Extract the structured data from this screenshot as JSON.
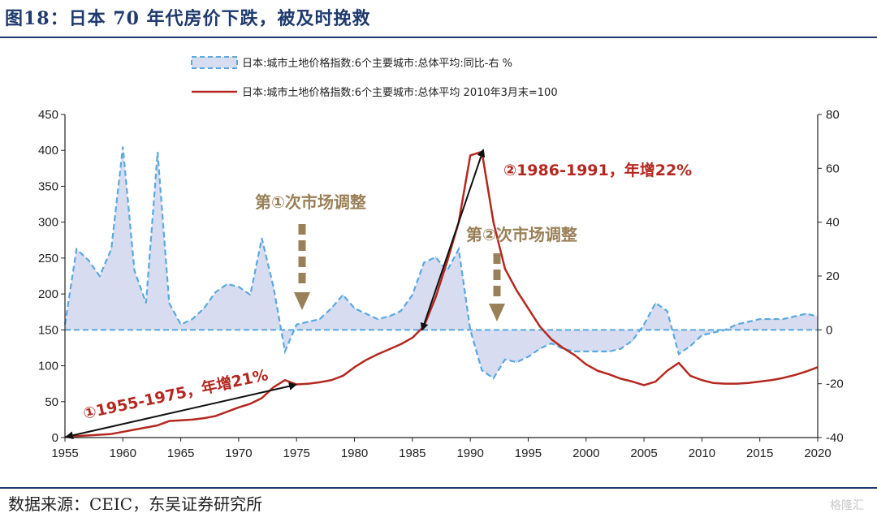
{
  "header": {
    "title": "图18：日本 70 年代房价下跌，被及时挽救"
  },
  "footer": {
    "source": "数据来源：CEIC，东吴证券研究所",
    "watermark": "格隆汇"
  },
  "colors": {
    "area_fill": "#d7dcf1",
    "area_line": "#5aa8e0",
    "index_line": "#b42820",
    "annotation_brown": "#9a8058",
    "annotation_red": "#b42820",
    "arrow": "#111111"
  },
  "chart_data": {
    "type": "line",
    "legend_position": "top",
    "grid": false,
    "x": [
      1955,
      1956,
      1957,
      1958,
      1959,
      1960,
      1961,
      1962,
      1963,
      1964,
      1965,
      1966,
      1967,
      1968,
      1969,
      1970,
      1971,
      1972,
      1973,
      1974,
      1975,
      1976,
      1977,
      1978,
      1979,
      1980,
      1981,
      1982,
      1983,
      1984,
      1985,
      1986,
      1987,
      1988,
      1989,
      1990,
      1991,
      1992,
      1993,
      1994,
      1995,
      1996,
      1997,
      1998,
      1999,
      2000,
      2001,
      2002,
      2003,
      2004,
      2005,
      2006,
      2007,
      2008,
      2009,
      2010,
      2011,
      2012,
      2013,
      2014,
      2015,
      2016,
      2017,
      2018,
      2019,
      2020
    ],
    "xlim": [
      1955,
      2020
    ],
    "x_ticks": [
      "1955",
      "1960",
      "1965",
      "1970",
      "1975",
      "1980",
      "1985",
      "1990",
      "1995",
      "2000",
      "2005",
      "2010",
      "2015",
      "2020"
    ],
    "y_left": {
      "range": [
        0,
        450
      ],
      "ticks": [
        "0",
        "50",
        "100",
        "150",
        "200",
        "250",
        "300",
        "350",
        "400",
        "450"
      ]
    },
    "y_right": {
      "range": [
        -40,
        80
      ],
      "ticks": [
        "-40",
        "-20",
        "0",
        "20",
        "40",
        "60",
        "80"
      ]
    },
    "series": [
      {
        "name": "日本:城市土地价格指数:6个主要城市:总体平均:同比-右 %",
        "style": "area_dashed",
        "axis": "right",
        "values": [
          2,
          30,
          26,
          20,
          30,
          68,
          22,
          10,
          66,
          10,
          2,
          4,
          8,
          14,
          17,
          16,
          13,
          34,
          16,
          -8,
          2,
          3,
          4,
          8,
          13,
          8,
          6,
          4,
          5,
          7,
          13,
          25,
          27,
          22,
          30,
          0,
          -15,
          -18,
          -11,
          -12,
          -10,
          -7,
          -5,
          -7,
          -8,
          -8,
          -8,
          -8,
          -7,
          -4,
          2,
          10,
          7,
          -9,
          -6,
          -2,
          -1,
          0,
          2,
          3,
          4,
          4,
          4,
          5,
          6,
          5
        ]
      },
      {
        "name": "日本:城市土地价格指数:6个主要城市:总体平均 2010年3月末=100",
        "style": "solid",
        "axis": "left",
        "values": [
          1,
          2,
          3,
          4,
          5,
          8,
          11,
          14,
          17,
          23,
          24,
          25,
          27,
          30,
          36,
          42,
          47,
          55,
          70,
          80,
          74,
          75,
          77,
          80,
          86,
          98,
          108,
          116,
          123,
          130,
          139,
          155,
          195,
          245,
          300,
          393,
          398,
          300,
          235,
          205,
          180,
          155,
          137,
          125,
          115,
          102,
          93,
          88,
          82,
          78,
          73,
          78,
          93,
          104,
          86,
          80,
          76,
          75,
          75,
          76,
          78,
          80,
          83,
          87,
          92,
          98
        ]
      }
    ],
    "annotations": [
      {
        "text": "第①次市场调整",
        "kind": "arrow-down"
      },
      {
        "text": "第②次市场调整",
        "kind": "arrow-down"
      },
      {
        "text": "①1955-1975，年增21%",
        "kind": "trend"
      },
      {
        "text": "②1986-1991，年增22%",
        "kind": "trend"
      }
    ]
  }
}
